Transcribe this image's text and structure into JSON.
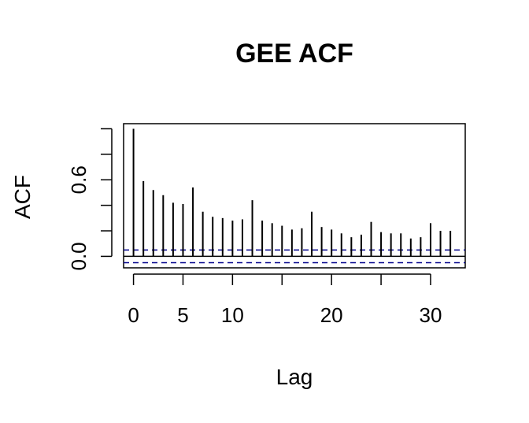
{
  "chart_data": {
    "type": "bar",
    "title": "GEE ACF",
    "xlabel": "Lag",
    "ylabel": "ACF",
    "x": [
      0,
      1,
      2,
      3,
      4,
      5,
      6,
      7,
      8,
      9,
      10,
      11,
      12,
      13,
      14,
      15,
      16,
      17,
      18,
      19,
      20,
      21,
      22,
      23,
      24,
      25,
      26,
      27,
      28,
      29,
      30,
      31,
      32
    ],
    "values": [
      1.0,
      0.59,
      0.52,
      0.48,
      0.42,
      0.41,
      0.54,
      0.35,
      0.31,
      0.3,
      0.28,
      0.29,
      0.44,
      0.28,
      0.26,
      0.24,
      0.21,
      0.22,
      0.35,
      0.23,
      0.21,
      0.18,
      0.15,
      0.17,
      0.27,
      0.19,
      0.18,
      0.18,
      0.14,
      0.15,
      0.26,
      0.2,
      0.2
    ],
    "xlim": [
      -1,
      33.5
    ],
    "ylim": [
      -0.09,
      1.04
    ],
    "x_ticks": [
      0,
      5,
      10,
      20,
      30
    ],
    "x_tick_labels": [
      "0",
      "5",
      "10",
      "20",
      "30"
    ],
    "x_ticks_unlabeled": [
      15,
      25
    ],
    "y_ticks": [
      0.0,
      0.2,
      0.4,
      0.6,
      0.8,
      1.0
    ],
    "y_tick_labels": [
      {
        "value": 0.0,
        "label": "0.0"
      },
      {
        "value": 0.6,
        "label": "0.6"
      }
    ],
    "confidence_bound": 0.05,
    "bound_color": "#00008B",
    "bar_color": "#000000",
    "grid": false,
    "legend": "none"
  }
}
